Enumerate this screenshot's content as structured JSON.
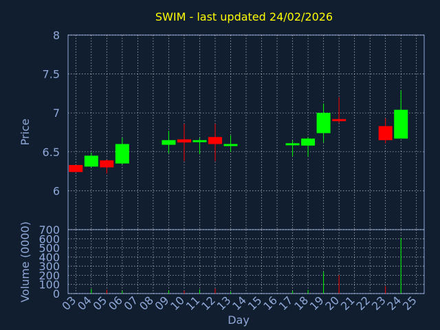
{
  "chart_data": {
    "type": "candlestick",
    "title": "SWIM - last updated 24/02/2026",
    "xlabel": "Day",
    "price_panel": {
      "ylabel": "Price",
      "ylim": [
        5.5,
        8
      ],
      "yticks": [
        "6",
        "6.5",
        "7",
        "7.5",
        "8"
      ]
    },
    "volume_panel": {
      "ylabel": "Volume (0000)",
      "ylim": [
        0,
        700
      ],
      "yticks": [
        "0",
        "100",
        "200",
        "300",
        "400",
        "500",
        "600",
        "700"
      ]
    },
    "x_ticks": [
      "03",
      "04",
      "05",
      "06",
      "07",
      "08",
      "09",
      "10",
      "11",
      "12",
      "13",
      "14",
      "15",
      "16",
      "17",
      "18",
      "19",
      "20",
      "21",
      "22",
      "23",
      "24",
      "25"
    ],
    "grid": true,
    "colors": {
      "up": "#00ff00",
      "down": "#ff0000",
      "grid": "#ffffff",
      "axis": "#8fa8d8",
      "title": "#ffff00",
      "background": "#111e30"
    },
    "candles": [
      {
        "day": "03",
        "open": 6.33,
        "close": 6.24,
        "high": 6.33,
        "low": 6.24,
        "volume": 0
      },
      {
        "day": "04",
        "open": 6.31,
        "close": 6.45,
        "high": 6.49,
        "low": 6.3,
        "volume": 50
      },
      {
        "day": "05",
        "open": 6.39,
        "close": 6.3,
        "high": 6.4,
        "low": 6.22,
        "volume": 40
      },
      {
        "day": "06",
        "open": 6.35,
        "close": 6.6,
        "high": 6.68,
        "low": 6.34,
        "volume": 30
      },
      {
        "day": "09",
        "open": 6.59,
        "close": 6.65,
        "high": 6.77,
        "low": 6.48,
        "volume": 35
      },
      {
        "day": "10",
        "open": 6.66,
        "close": 6.62,
        "high": 6.86,
        "low": 6.38,
        "volume": 30
      },
      {
        "day": "11",
        "open": 6.63,
        "close": 6.65,
        "high": 6.68,
        "low": 6.47,
        "volume": 45
      },
      {
        "day": "12",
        "open": 6.69,
        "close": 6.6,
        "high": 6.86,
        "low": 6.38,
        "volume": 55
      },
      {
        "day": "13",
        "open": 6.59,
        "close": 6.6,
        "high": 6.71,
        "low": 6.5,
        "volume": 20
      },
      {
        "day": "17",
        "open": 6.59,
        "close": 6.61,
        "high": 6.65,
        "low": 6.44,
        "volume": 30
      },
      {
        "day": "18",
        "open": 6.58,
        "close": 6.67,
        "high": 6.69,
        "low": 6.44,
        "volume": 40
      },
      {
        "day": "19",
        "open": 6.74,
        "close": 7.0,
        "high": 7.12,
        "low": 6.62,
        "volume": 240
      },
      {
        "day": "20",
        "open": 6.92,
        "close": 6.9,
        "high": 7.2,
        "low": 6.87,
        "volume": 200
      },
      {
        "day": "23",
        "open": 6.83,
        "close": 6.65,
        "high": 6.93,
        "low": 6.61,
        "volume": 80
      },
      {
        "day": "24",
        "open": 6.67,
        "close": 7.04,
        "high": 7.29,
        "low": 6.67,
        "volume": 610
      }
    ]
  }
}
